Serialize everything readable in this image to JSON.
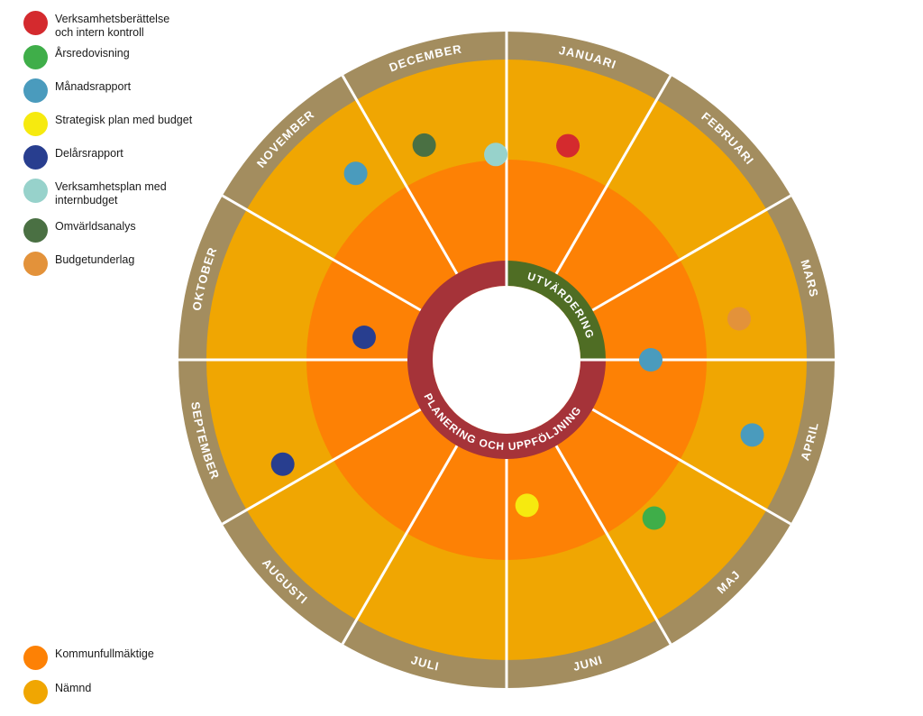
{
  "legend": {
    "items": [
      {
        "label": "Verksamhetsberättelse\noch intern kontroll",
        "color": "#d42a2e"
      },
      {
        "label": "Årsredovisning",
        "color": "#3fae49"
      },
      {
        "label": "Månadsrapport",
        "color": "#4a9bbd"
      },
      {
        "label": "Strategisk plan med budget",
        "color": "#f6ea0f"
      },
      {
        "label": "Delårsrapport",
        "color": "#283e8f"
      },
      {
        "label": "Verksamhetsplan med\ninternbudget",
        "color": "#97d2cb"
      },
      {
        "label": "Omvärldsanalys",
        "color": "#4a7043"
      },
      {
        "label": "Budgetunderlag",
        "color": "#e3923a"
      }
    ]
  },
  "bottom_legend": {
    "items": [
      {
        "label": "Kommunfullmäktige",
        "color": "#fd8105"
      },
      {
        "label": "Nämnd",
        "color": "#f0a602"
      }
    ]
  },
  "wheel": {
    "months": [
      "JANUARI",
      "FEBRUARI",
      "MARS",
      "APRIL",
      "MAJ",
      "JUNI",
      "JULI",
      "AUGUSTI",
      "SEPTEMBER",
      "OKTOBER",
      "NOVEMBER",
      "DECEMBER"
    ],
    "inner_ring": {
      "utvardering": "UTVÄRDERING",
      "planering": "PLANERING OCH UPPFÖLJNING"
    },
    "colors": {
      "rim": "#a38d5f",
      "nämnd": "#f0a602",
      "kommunfullmäktige": "#fd8105",
      "divider": "#ffffff",
      "utvardering": "#4f6d24",
      "planering": "#a53339"
    },
    "markers": [
      {
        "event": "Verksamhetsberättelse och intern kontroll",
        "month": "JANUARI",
        "color": "#d42a2e"
      },
      {
        "event": "Budgetunderlag",
        "month": "MARS",
        "color": "#e3923a"
      },
      {
        "event": "Månadsrapport",
        "month": "APRIL",
        "color": "#4a9bbd"
      },
      {
        "event": "Årsredovisning",
        "month": "APRIL",
        "color": "#3fae49"
      },
      {
        "event": "Månadsrapport",
        "month": "MAJ",
        "color": "#4a9bbd"
      },
      {
        "event": "Strategisk plan med budget",
        "month": "JUNI",
        "color": "#f6ea0f"
      },
      {
        "event": "Delårsrapport",
        "month": "SEPTEMBER",
        "color": "#283e8f"
      },
      {
        "event": "Delårsrapport",
        "month": "OKTOBER",
        "color": "#283e8f"
      },
      {
        "event": "Månadsrapport",
        "month": "NOVEMBER",
        "color": "#4a9bbd"
      },
      {
        "event": "Omvärldsanalys",
        "month": "NOVEMBER",
        "color": "#4a7043"
      },
      {
        "event": "Verksamhetsplan med internbudget",
        "month": "DECEMBER",
        "color": "#97d2cb"
      }
    ]
  }
}
